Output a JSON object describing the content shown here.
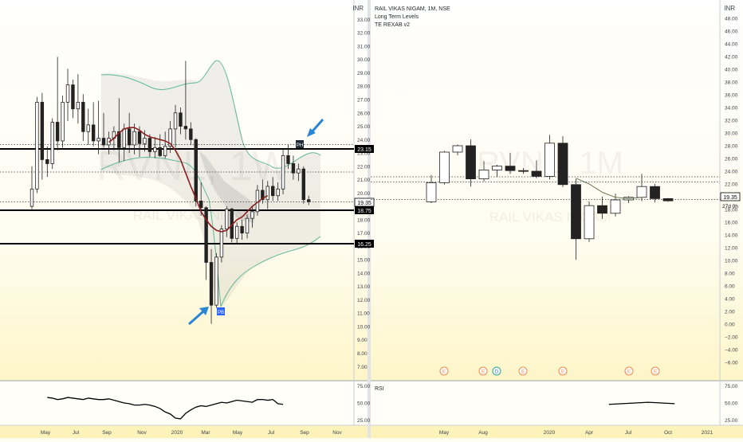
{
  "left_chart": {
    "currency": "INR",
    "watermark_ticker": "RVNL, 1W",
    "watermark_name": "RAIL VIKAS NIGAM",
    "price_labels": {
      "resistance": "23.15",
      "last": "19.35",
      "support_high": "18.75",
      "support_low": "16.25"
    },
    "markers": {
      "top": "PH",
      "bottom": "PB"
    },
    "x_ticks": [
      "May",
      "Jul",
      "Sep",
      "Nov",
      "2020",
      "Mar",
      "May",
      "Jul",
      "Sep",
      "Nov"
    ],
    "rsi_ticks": [
      "75.00",
      "50.00",
      "25.00"
    ]
  },
  "right_chart": {
    "currency": "INR",
    "title": "RAIL VIKAS NIGAM, 1M, NSE",
    "indicator_1": "Long Term Levels",
    "indicator_2": "TE REXAB v2",
    "watermark_ticker": "RVNL, 1M",
    "watermark_name": "RAIL VIKAS NIGAM",
    "price_label": "19.35",
    "countdown": "27d 0h",
    "earnings_marker": "E",
    "dividend_marker": "D",
    "rsi_title": "RSI",
    "x_ticks": [
      "May",
      "Aug",
      "2020",
      "Apr",
      "Jul",
      "Oct",
      "2021"
    ],
    "rsi_ticks": [
      "75.00",
      "50.00",
      "25.00"
    ]
  },
  "chart_data": [
    {
      "type": "candlestick",
      "title": "",
      "timeframe": "1W",
      "x": [
        "May 2019",
        "Jul 2019",
        "Sep 2019",
        "Nov 2019",
        "2020",
        "Mar 2020",
        "May 2020",
        "Jul 2020",
        "Sep 2020",
        "Nov 2020"
      ],
      "y_ticks": [
        7,
        8,
        9,
        10,
        11,
        12,
        13,
        14,
        15,
        16,
        17,
        18,
        19,
        20,
        21,
        22,
        23,
        24,
        25,
        26,
        27,
        28,
        29,
        30,
        31,
        32,
        33
      ],
      "ylim": [
        6.3,
        33.8
      ],
      "candles": [
        {
          "o": 19,
          "h": 22,
          "l": 18.8,
          "c": 20.3
        },
        {
          "o": 20.3,
          "h": 27.2,
          "l": 20,
          "c": 26.8
        },
        {
          "o": 26.8,
          "h": 27.5,
          "l": 21,
          "c": 22.5
        },
        {
          "o": 22.5,
          "h": 23.5,
          "l": 21.2,
          "c": 22.2
        },
        {
          "o": 22.2,
          "h": 25.6,
          "l": 21.8,
          "c": 25.3
        },
        {
          "o": 25.3,
          "h": 30.2,
          "l": 23.2,
          "c": 23.9
        },
        {
          "o": 23.9,
          "h": 27.3,
          "l": 23.4,
          "c": 26.8
        },
        {
          "o": 26.8,
          "h": 29.3,
          "l": 25.4,
          "c": 28.1
        },
        {
          "o": 28.1,
          "h": 28.5,
          "l": 25.6,
          "c": 26.3
        },
        {
          "o": 26.3,
          "h": 28.9,
          "l": 25.2,
          "c": 26.8
        },
        {
          "o": 26.8,
          "h": 27.4,
          "l": 23.9,
          "c": 24.6
        },
        {
          "o": 24.6,
          "h": 26.3,
          "l": 23.6,
          "c": 25.1
        },
        {
          "o": 25.1,
          "h": 26.8,
          "l": 23.5,
          "c": 23.9
        },
        {
          "o": 23.9,
          "h": 26.9,
          "l": 22.9,
          "c": 24.1
        },
        {
          "o": 24.1,
          "h": 26.0,
          "l": 23.4,
          "c": 23.6
        },
        {
          "o": 23.6,
          "h": 24.6,
          "l": 22.9,
          "c": 24.1
        },
        {
          "o": 24.1,
          "h": 25.0,
          "l": 23.2,
          "c": 24.6
        },
        {
          "o": 24.6,
          "h": 27.1,
          "l": 22.3,
          "c": 23.4
        },
        {
          "o": 23.4,
          "h": 25.2,
          "l": 22.4,
          "c": 24.8
        },
        {
          "o": 24.8,
          "h": 26.0,
          "l": 23.0,
          "c": 23.6
        },
        {
          "o": 23.6,
          "h": 25.2,
          "l": 22.9,
          "c": 24.6
        },
        {
          "o": 24.6,
          "h": 25.0,
          "l": 22.7,
          "c": 23.7
        },
        {
          "o": 23.7,
          "h": 24.7,
          "l": 23.1,
          "c": 24.1
        },
        {
          "o": 24.1,
          "h": 24.4,
          "l": 22.7,
          "c": 23.1
        },
        {
          "o": 23.1,
          "h": 24.2,
          "l": 22.6,
          "c": 23.4
        },
        {
          "o": 23.4,
          "h": 24.4,
          "l": 22.7,
          "c": 22.8
        },
        {
          "o": 22.8,
          "h": 24.6,
          "l": 22.6,
          "c": 23.5
        },
        {
          "o": 23.5,
          "h": 25.4,
          "l": 23.0,
          "c": 24.8
        },
        {
          "o": 24.8,
          "h": 26.6,
          "l": 23.4,
          "c": 26.0
        },
        {
          "o": 26.0,
          "h": 26.4,
          "l": 24.4,
          "c": 25.0
        },
        {
          "o": 25.0,
          "h": 29.9,
          "l": 24.0,
          "c": 24.8
        },
        {
          "o": 24.8,
          "h": 25.3,
          "l": 23.6,
          "c": 24.0
        },
        {
          "o": 24.0,
          "h": 24.1,
          "l": 19.0,
          "c": 19.4
        },
        {
          "o": 19.4,
          "h": 20.8,
          "l": 18.3,
          "c": 18.9
        },
        {
          "o": 18.9,
          "h": 19.0,
          "l": 13.5,
          "c": 14.8
        },
        {
          "o": 14.8,
          "h": 15.8,
          "l": 10.2,
          "c": 11.6
        },
        {
          "o": 11.6,
          "h": 15.5,
          "l": 11.4,
          "c": 15.2
        },
        {
          "o": 15.2,
          "h": 17.6,
          "l": 14.8,
          "c": 17.3
        },
        {
          "o": 17.3,
          "h": 19.0,
          "l": 16.7,
          "c": 18.8
        },
        {
          "o": 18.8,
          "h": 18.9,
          "l": 16.3,
          "c": 16.6
        },
        {
          "o": 16.6,
          "h": 17.8,
          "l": 16.2,
          "c": 17.5
        },
        {
          "o": 17.5,
          "h": 18.0,
          "l": 16.5,
          "c": 17.0
        },
        {
          "o": 17.0,
          "h": 18.4,
          "l": 16.6,
          "c": 18.1
        },
        {
          "o": 18.1,
          "h": 19.0,
          "l": 17.4,
          "c": 18.6
        },
        {
          "o": 18.6,
          "h": 20.6,
          "l": 18.3,
          "c": 20.2
        },
        {
          "o": 20.2,
          "h": 21.0,
          "l": 19.2,
          "c": 19.5
        },
        {
          "o": 19.5,
          "h": 20.9,
          "l": 18.8,
          "c": 20.5
        },
        {
          "o": 20.5,
          "h": 21.2,
          "l": 19.4,
          "c": 19.8
        },
        {
          "o": 19.8,
          "h": 20.8,
          "l": 19.4,
          "c": 20.3
        },
        {
          "o": 20.3,
          "h": 23.3,
          "l": 19.9,
          "c": 22.8
        },
        {
          "o": 22.8,
          "h": 23.6,
          "l": 21.8,
          "c": 22.2
        },
        {
          "o": 22.2,
          "h": 22.8,
          "l": 21.0,
          "c": 21.5
        },
        {
          "o": 21.5,
          "h": 22.2,
          "l": 20.9,
          "c": 21.8
        },
        {
          "o": 21.8,
          "h": 22.0,
          "l": 19.2,
          "c": 19.5
        },
        {
          "o": 19.5,
          "h": 19.8,
          "l": 19.1,
          "c": 19.35
        }
      ],
      "moving_average": [
        23.8,
        24.1,
        24.5,
        24.8,
        24.9,
        24.9,
        24.7,
        24.4,
        24.2,
        24.1,
        24.0,
        23.9,
        23.7,
        23.2,
        22.5,
        21.5,
        20.5,
        19.6,
        18.6,
        18.0,
        17.5,
        17.2,
        17.1,
        17.2,
        17.6,
        18.0,
        18.2,
        18.6,
        19.0,
        19.3,
        19.6,
        19.8
      ],
      "levels": [
        23.15,
        18.75,
        16.25
      ],
      "dotted_levels": [
        23.4,
        21.7,
        19.35
      ],
      "last_price": 19.35,
      "annotations": [
        "PH",
        "PB"
      ],
      "rsi": {
        "ylim": [
          20,
          80
        ],
        "ticks": [
          75,
          50,
          25
        ],
        "values": [
          58,
          57,
          55,
          56,
          58,
          57,
          56,
          55,
          57,
          56,
          55,
          55,
          56,
          54,
          52,
          50,
          49,
          47,
          47,
          48,
          47,
          45,
          42,
          37,
          34,
          28,
          27,
          35,
          40,
          44,
          46,
          45,
          47,
          49,
          51,
          50,
          52,
          54,
          53,
          52,
          51,
          55,
          55,
          54,
          55,
          49,
          48
        ]
      }
    },
    {
      "type": "candlestick",
      "title": "RAIL VIKAS NIGAM, 1M, NSE",
      "timeframe": "1M",
      "x": [
        "May 2019",
        "Aug 2019",
        "2020",
        "Apr 2020",
        "Jul 2020",
        "Oct 2020",
        "2021"
      ],
      "y_ticks": [
        -6,
        -4,
        -2,
        0,
        2,
        4,
        6,
        8,
        10,
        12,
        14,
        16,
        18,
        20,
        22,
        24,
        26,
        28,
        30,
        32,
        34,
        36,
        38,
        40,
        42,
        44,
        46,
        48
      ],
      "ylim": [
        -7,
        49.5
      ],
      "candles": [
        {
          "o": 19.2,
          "h": 23.4,
          "l": 19.0,
          "c": 22.2
        },
        {
          "o": 22.2,
          "h": 27.2,
          "l": 21.9,
          "c": 27.0
        },
        {
          "o": 27.0,
          "h": 28.2,
          "l": 26.5,
          "c": 28.0
        },
        {
          "o": 28.0,
          "h": 29.0,
          "l": 21.6,
          "c": 22.8
        },
        {
          "o": 22.8,
          "h": 25.6,
          "l": 22.4,
          "c": 24.2
        },
        {
          "o": 24.2,
          "h": 25.0,
          "l": 23.1,
          "c": 24.8
        },
        {
          "o": 24.8,
          "h": 26.9,
          "l": 23.6,
          "c": 24.1
        },
        {
          "o": 24.1,
          "h": 24.5,
          "l": 23.6,
          "c": 24.0
        },
        {
          "o": 24.0,
          "h": 25.7,
          "l": 22.9,
          "c": 23.2
        },
        {
          "o": 23.2,
          "h": 29.7,
          "l": 22.7,
          "c": 28.4
        },
        {
          "o": 28.4,
          "h": 29.5,
          "l": 21.5,
          "c": 21.9
        },
        {
          "o": 21.9,
          "h": 22.8,
          "l": 10.1,
          "c": 13.4
        },
        {
          "o": 13.4,
          "h": 19.3,
          "l": 12.9,
          "c": 18.6
        },
        {
          "o": 18.6,
          "h": 20.0,
          "l": 16.5,
          "c": 17.4
        },
        {
          "o": 17.4,
          "h": 20.5,
          "l": 16.9,
          "c": 19.5
        },
        {
          "o": 19.5,
          "h": 20.1,
          "l": 19.0,
          "c": 19.9
        },
        {
          "o": 19.9,
          "h": 23.6,
          "l": 19.3,
          "c": 21.6
        },
        {
          "o": 21.6,
          "h": 22.0,
          "l": 19.1,
          "c": 19.7
        },
        {
          "o": 19.7,
          "h": 19.8,
          "l": 19.2,
          "c": 19.35
        }
      ],
      "moving_average": [
        22.9,
        22.0,
        20.7,
        19.9,
        19.7,
        19.9
      ],
      "dotted_levels": [
        22.6,
        21.8,
        19.35
      ],
      "last_price": 19.35,
      "events": [
        "E",
        "E",
        "D",
        "E",
        "E",
        "E",
        "E"
      ],
      "rsi": {
        "ylim": [
          20,
          80
        ],
        "ticks": [
          75,
          50,
          25
        ],
        "values": [
          48,
          49,
          50,
          51,
          50,
          49
        ]
      }
    }
  ]
}
